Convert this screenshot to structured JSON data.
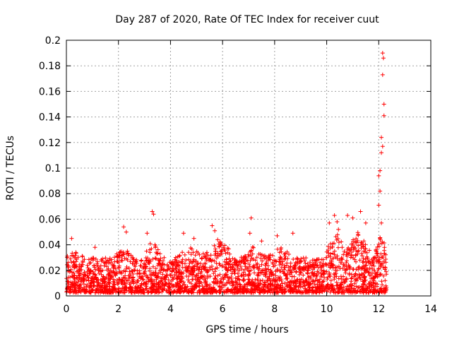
{
  "chart_data": {
    "type": "scatter",
    "title": "Day 287 of 2020, Rate Of TEC Index for receiver cuut",
    "xlabel": "GPS time / hours",
    "ylabel": "ROTI / TECUs",
    "xlim": [
      0,
      14
    ],
    "ylim": [
      0,
      0.2
    ],
    "xticks": [
      0,
      2,
      4,
      6,
      8,
      10,
      12,
      14
    ],
    "xtick_labels": [
      "0",
      "2",
      "4",
      "6",
      "8",
      "10",
      "12",
      "14"
    ],
    "yticks": [
      0,
      0.02,
      0.04,
      0.06,
      0.08,
      0.1,
      0.12,
      0.14,
      0.16,
      0.18,
      0.2
    ],
    "ytick_labels": [
      "0",
      "0.02",
      "0.04",
      "0.06",
      "0.08",
      "0.1",
      "0.12",
      "0.14",
      "0.16",
      "0.18",
      "0.2"
    ],
    "grid": true,
    "marker": "+",
    "series_color": "#ff0000",
    "data_time_range": [
      0,
      12.3
    ],
    "baseline_range": [
      0.005,
      0.03
    ],
    "notable_points": [
      {
        "x": 0.2,
        "y": 0.045
      },
      {
        "x": 1.1,
        "y": 0.038
      },
      {
        "x": 2.2,
        "y": 0.054
      },
      {
        "x": 2.3,
        "y": 0.05
      },
      {
        "x": 3.3,
        "y": 0.066
      },
      {
        "x": 3.35,
        "y": 0.064
      },
      {
        "x": 3.1,
        "y": 0.049
      },
      {
        "x": 4.5,
        "y": 0.049
      },
      {
        "x": 4.9,
        "y": 0.045
      },
      {
        "x": 5.6,
        "y": 0.055
      },
      {
        "x": 5.7,
        "y": 0.051
      },
      {
        "x": 7.1,
        "y": 0.061
      },
      {
        "x": 7.05,
        "y": 0.049
      },
      {
        "x": 7.5,
        "y": 0.043
      },
      {
        "x": 8.1,
        "y": 0.047
      },
      {
        "x": 8.7,
        "y": 0.049
      },
      {
        "x": 10.1,
        "y": 0.057
      },
      {
        "x": 10.3,
        "y": 0.063
      },
      {
        "x": 10.4,
        "y": 0.058
      },
      {
        "x": 10.45,
        "y": 0.052
      },
      {
        "x": 10.8,
        "y": 0.063
      },
      {
        "x": 11.0,
        "y": 0.061
      },
      {
        "x": 11.3,
        "y": 0.066
      },
      {
        "x": 11.5,
        "y": 0.057
      },
      {
        "x": 12.0,
        "y": 0.071
      },
      {
        "x": 12.05,
        "y": 0.082
      },
      {
        "x": 12.0,
        "y": 0.094
      },
      {
        "x": 12.05,
        "y": 0.098
      },
      {
        "x": 12.1,
        "y": 0.112
      },
      {
        "x": 12.15,
        "y": 0.117
      },
      {
        "x": 12.1,
        "y": 0.124
      },
      {
        "x": 12.2,
        "y": 0.141
      },
      {
        "x": 12.2,
        "y": 0.15
      },
      {
        "x": 12.15,
        "y": 0.173
      },
      {
        "x": 12.18,
        "y": 0.186
      },
      {
        "x": 12.15,
        "y": 0.19
      },
      {
        "x": 12.1,
        "y": 0.057
      },
      {
        "x": 12.05,
        "y": 0.045
      }
    ],
    "active_bursts": [
      {
        "center": 0.3,
        "width": 0.5,
        "peak": 0.035
      },
      {
        "center": 2.2,
        "width": 0.4,
        "peak": 0.04
      },
      {
        "center": 3.3,
        "width": 0.4,
        "peak": 0.045
      },
      {
        "center": 4.7,
        "width": 0.6,
        "peak": 0.04
      },
      {
        "center": 5.8,
        "width": 0.8,
        "peak": 0.045
      },
      {
        "center": 7.2,
        "width": 0.5,
        "peak": 0.04
      },
      {
        "center": 8.2,
        "width": 0.5,
        "peak": 0.04
      },
      {
        "center": 10.4,
        "width": 0.6,
        "peak": 0.05
      },
      {
        "center": 11.2,
        "width": 0.7,
        "peak": 0.05
      },
      {
        "center": 12.1,
        "width": 0.3,
        "peak": 0.05
      }
    ]
  }
}
